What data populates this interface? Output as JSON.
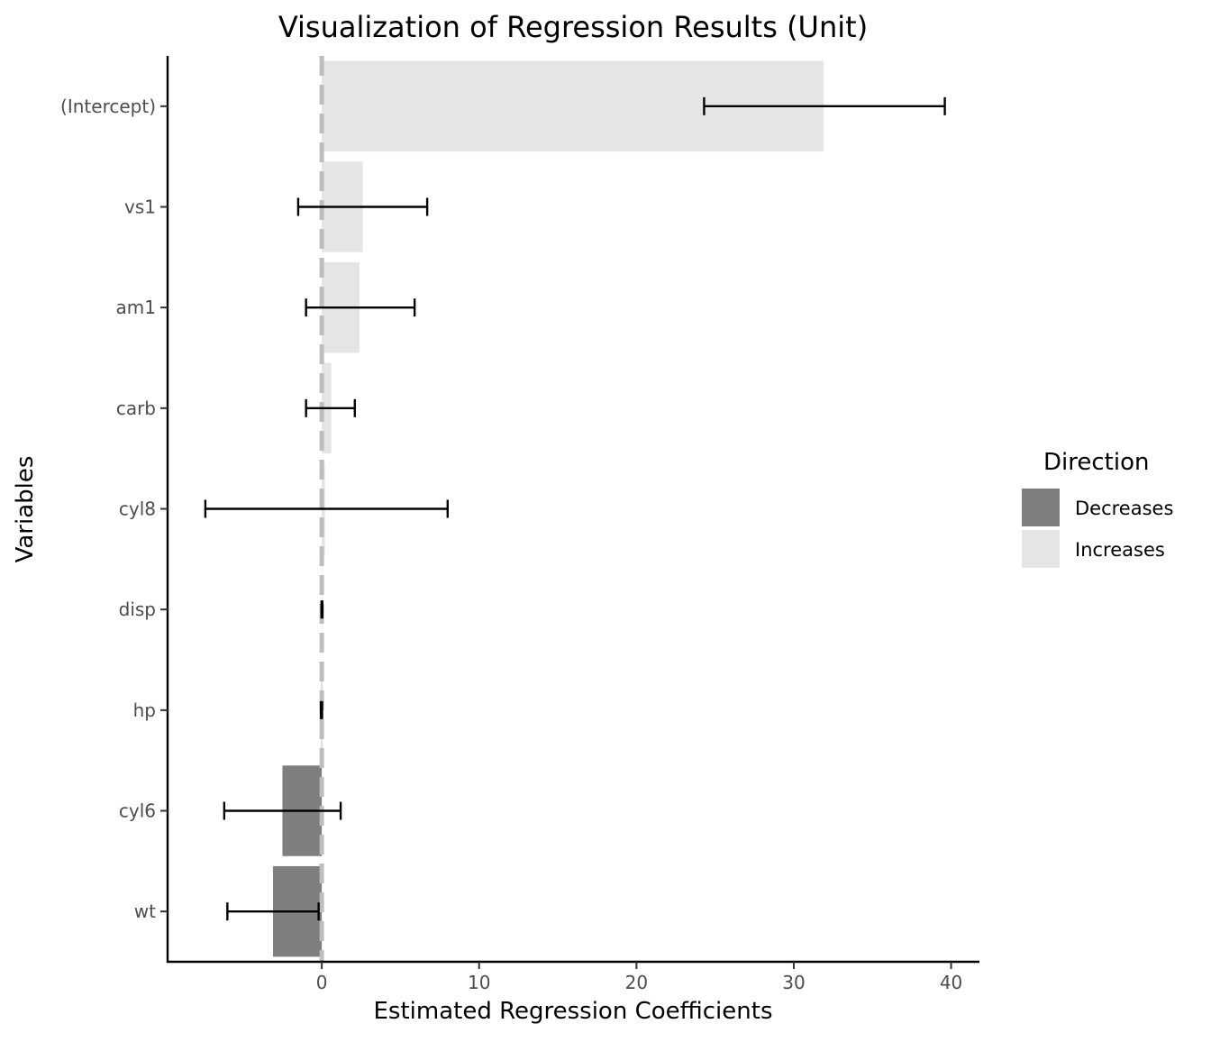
{
  "chart_data": {
    "type": "bar",
    "orientation": "horizontal",
    "title": "Visualization of Regression Results (Unit)",
    "xlabel": "Estimated Regression Coefficients",
    "ylabel": "Variables",
    "xlim": [
      -9.8,
      41.8
    ],
    "xticks": [
      0,
      10,
      20,
      30,
      40
    ],
    "reference_line": 0,
    "grid": false,
    "legend_position": "right",
    "legend": {
      "title": "Direction",
      "items": [
        {
          "label": "Decreases",
          "color": "#7f7f7f"
        },
        {
          "label": "Increases",
          "color": "#e5e5e5"
        }
      ]
    },
    "categories": [
      "(Intercept)",
      "vs1",
      "am1",
      "carb",
      "cyl8",
      "disp",
      "hp",
      "cyl6",
      "wt"
    ],
    "values": [
      31.9,
      2.6,
      2.4,
      0.6,
      0.2,
      0.01,
      -0.02,
      -2.5,
      -3.1
    ],
    "ci_low": [
      24.3,
      -1.5,
      -1.0,
      -1.0,
      -7.4,
      -0.02,
      -0.06,
      -6.2,
      -6.0
    ],
    "ci_high": [
      39.6,
      6.7,
      5.9,
      2.1,
      8.0,
      0.04,
      0.02,
      1.2,
      -0.2
    ],
    "direction": [
      "Increases",
      "Increases",
      "Increases",
      "Increases",
      "Increases",
      "Increases",
      "Decreases",
      "Decreases",
      "Decreases"
    ],
    "colors": {
      "Decreases": "#7f7f7f",
      "Increases": "#e5e5e5",
      "reference_line": "#bebebe",
      "error_bar": "#000000",
      "axis": "#000000"
    }
  }
}
